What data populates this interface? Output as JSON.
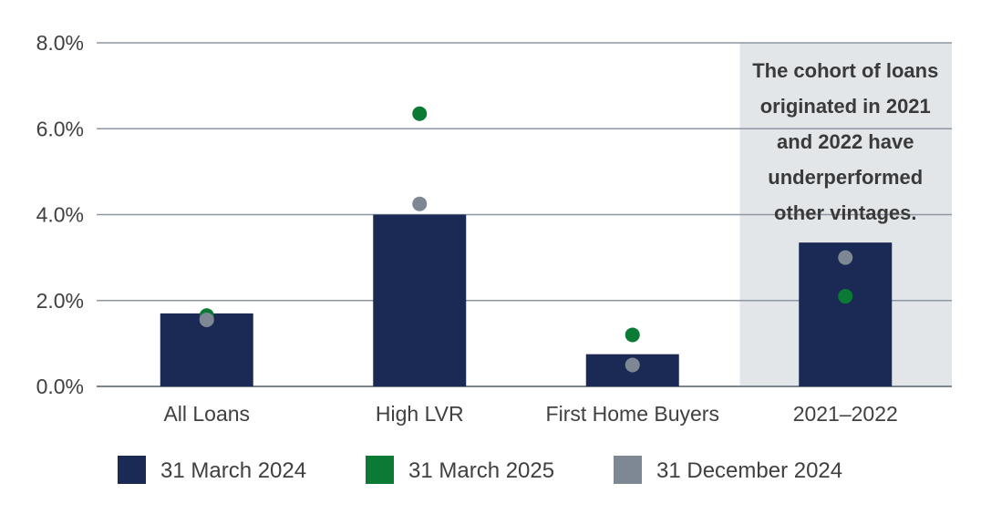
{
  "chart_data": {
    "type": "bar",
    "categories": [
      "All Loans",
      "High LVR",
      "First Home Buyers",
      "2021–2022"
    ],
    "series": [
      {
        "name": "31 March 2024",
        "kind": "bar",
        "color": "#1b2a55",
        "values": [
          1.7,
          4.0,
          0.75,
          3.35
        ]
      },
      {
        "name": "31 March 2025",
        "kind": "dot",
        "color": "#0a7a35",
        "values": [
          1.65,
          6.35,
          1.2,
          2.1
        ]
      },
      {
        "name": "31 December 2024",
        "kind": "dot",
        "color": "#7d8894",
        "values": [
          1.55,
          4.25,
          0.5,
          3.0
        ]
      }
    ],
    "ylim": [
      0,
      8
    ],
    "yticks": [
      "0.0%",
      "2.0%",
      "4.0%",
      "6.0%",
      "8.0%"
    ],
    "ytick_values": [
      0,
      2,
      4,
      6,
      8
    ],
    "grid": true,
    "legend_position": "bottom",
    "highlight_category": "2021–2022",
    "highlight_color": "#e3e6e9",
    "annotation_lines": [
      "The cohort of loans",
      "originated in 2021",
      "and 2022 have",
      "underperformed",
      "other vintages."
    ]
  }
}
